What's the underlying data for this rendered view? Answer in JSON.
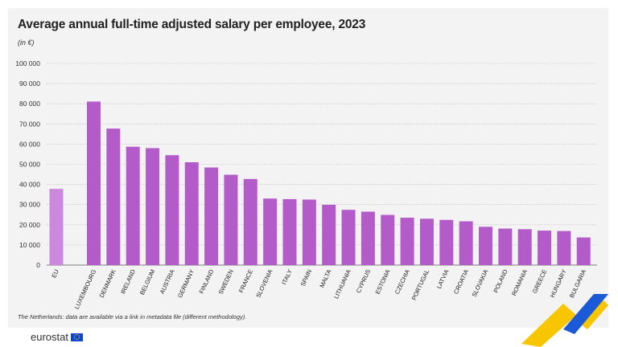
{
  "title": "Average annual full-time adjusted salary per employee, 2023",
  "subtitle": "(in €)",
  "footnote": "The Netherlands: data are available via a link in metadata file (different methodology).",
  "logo_text": "eurostat",
  "colors": {
    "eu": "#cc88dd",
    "country": "#b35cc9",
    "panel": "#f3f3f3",
    "accent_yellow": "#f7c600",
    "accent_blue": "#1a5ad7"
  },
  "chart_data": {
    "type": "bar",
    "title": "Average annual full-time adjusted salary per employee, 2023",
    "ylabel": "(in €)",
    "ylim": [
      0,
      100000
    ],
    "yticks": [
      "0",
      "10 000",
      "20 000",
      "30 000",
      "40 000",
      "50 000",
      "60 000",
      "70 000",
      "80 000",
      "90 000",
      "100 000"
    ],
    "grid": true,
    "categories": [
      "EU",
      "LUXEMBOURG",
      "DENMARK",
      "IRELAND",
      "BELGIUM",
      "AUSTRIA",
      "GERMANY",
      "FINLAND",
      "SWEDEN",
      "FRANCE",
      "SLOVENIA",
      "ITALY",
      "SPAIN",
      "MALTA",
      "LITHUANIA",
      "CYPRUS",
      "ESTONIA",
      "CZECHIA",
      "PORTUGAL",
      "LATVIA",
      "CROATIA",
      "SLOVAKIA",
      "POLAND",
      "ROMANIA",
      "GREECE",
      "HUNGARY",
      "BULGARIA"
    ],
    "values": [
      37800,
      81100,
      67700,
      58700,
      58000,
      54500,
      51000,
      48400,
      44800,
      42700,
      33000,
      32700,
      32500,
      29900,
      27400,
      26500,
      24900,
      23500,
      23000,
      22400,
      21700,
      19000,
      18100,
      17800,
      17100,
      16900,
      13700
    ]
  }
}
